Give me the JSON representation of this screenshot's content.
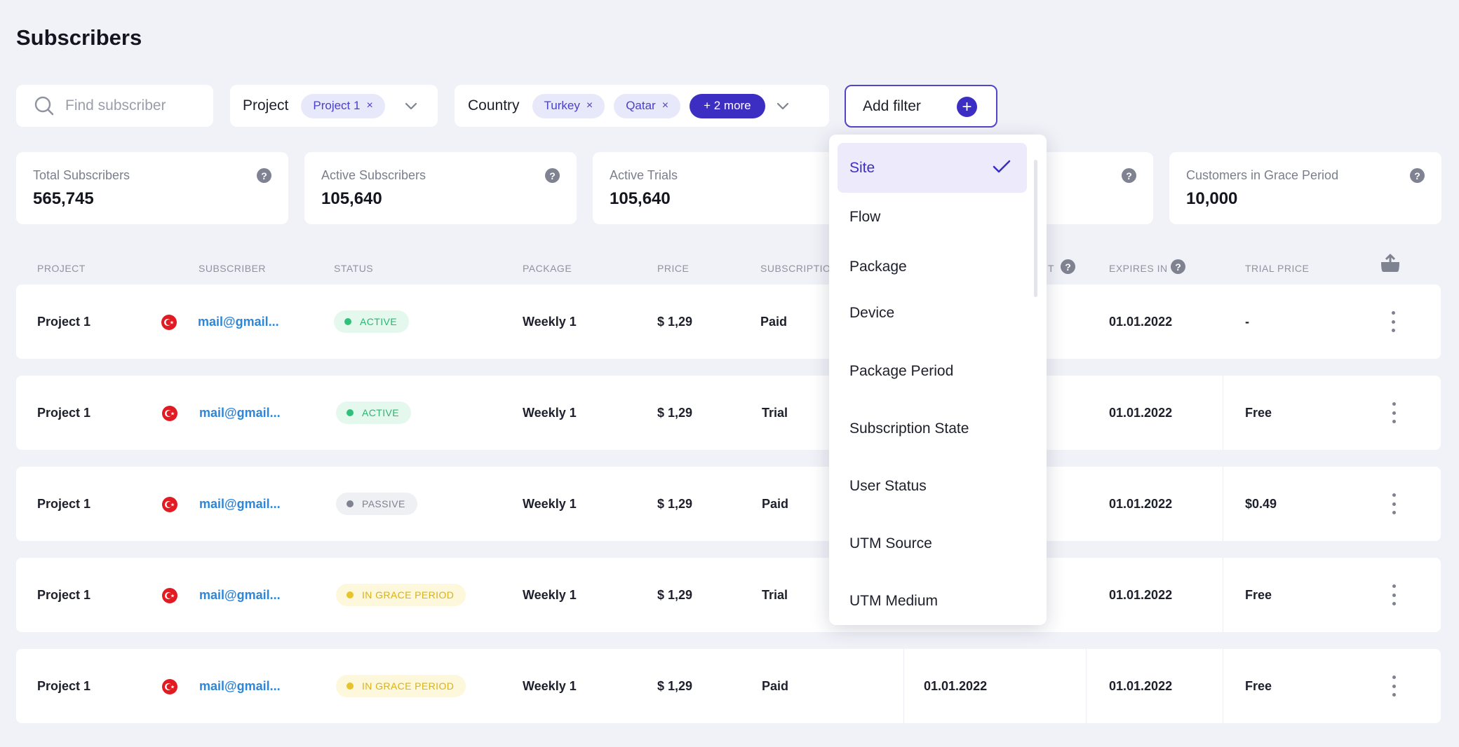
{
  "page": {
    "title": "Subscribers"
  },
  "filters": {
    "search_placeholder": "Find subscriber",
    "project": {
      "label": "Project",
      "chips": [
        "Project 1"
      ]
    },
    "country": {
      "label": "Country",
      "chips": [
        "Turkey",
        "Qatar"
      ],
      "more": "+ 2 more"
    },
    "add_filter": "Add filter",
    "remove_glyph": "×"
  },
  "stats": [
    {
      "label": "Total Subscribers",
      "value": "565,745"
    },
    {
      "label": "Active Subscribers",
      "value": "105,640"
    },
    {
      "label": "Active Trials",
      "value": "105,640"
    },
    {
      "label": "",
      "value": ""
    },
    {
      "label": "Customers in Grace Period",
      "value": "10,000"
    }
  ],
  "help_glyph": "?",
  "table": {
    "headers": {
      "project": "PROJECT",
      "subscriber": "SUBSCRIBER",
      "status": "STATUS",
      "package": "PACKAGE",
      "price": "PRICE",
      "subscription": "SUBSCRIPTIO",
      "renew": "T",
      "expires": "EXPIRES IN",
      "trial_price": "TRIAL PRICE"
    },
    "rows": [
      {
        "project": "Project 1",
        "email": "mail@gmail...",
        "status": "ACTIVE",
        "package": "Weekly 1",
        "price": "$ 1,29",
        "subscription": "Paid",
        "date": "",
        "expires": "01.01.2022",
        "trial_price": "-"
      },
      {
        "project": "Project 1",
        "email": "mail@gmail...",
        "status": "ACTIVE",
        "package": "Weekly 1",
        "price": "$ 1,29",
        "subscription": "Trial",
        "date": "",
        "expires": "01.01.2022",
        "trial_price": "Free"
      },
      {
        "project": "Project 1",
        "email": "mail@gmail...",
        "status": "PASSIVE",
        "package": "Weekly 1",
        "price": "$ 1,29",
        "subscription": "Paid",
        "date": "",
        "expires": "01.01.2022",
        "trial_price": "$0.49"
      },
      {
        "project": "Project 1",
        "email": "mail@gmail...",
        "status": "IN GRACE PERIOD",
        "package": "Weekly 1",
        "price": "$ 1,29",
        "subscription": "Trial",
        "date": "",
        "expires": "01.01.2022",
        "trial_price": "Free"
      },
      {
        "project": "Project 1",
        "email": "mail@gmail...",
        "status": "IN GRACE PERIOD",
        "package": "Weekly 1",
        "price": "$ 1,29",
        "subscription": "Paid",
        "date": "01.01.2022",
        "expires": "01.01.2022",
        "trial_price": "Free"
      }
    ]
  },
  "dropdown": {
    "items": [
      "Site",
      "Flow",
      "Package",
      "Device",
      "Package Period",
      "Subscription State",
      "User Status",
      "UTM Source",
      "UTM Medium"
    ],
    "selected": "Site"
  },
  "colors": {
    "accent": "#3d2ec3",
    "active": "#2fc179",
    "passive": "#7e8291",
    "grace": "#e6c42a",
    "link": "#2d86d9"
  },
  "icons": {
    "search": "search-icon",
    "chevron": "chevron-down-icon",
    "plus": "plus-icon",
    "help": "help-icon",
    "export": "export-icon",
    "flag": "turkey-flag-icon",
    "menu": "more-vertical-icon",
    "check": "check-icon"
  }
}
